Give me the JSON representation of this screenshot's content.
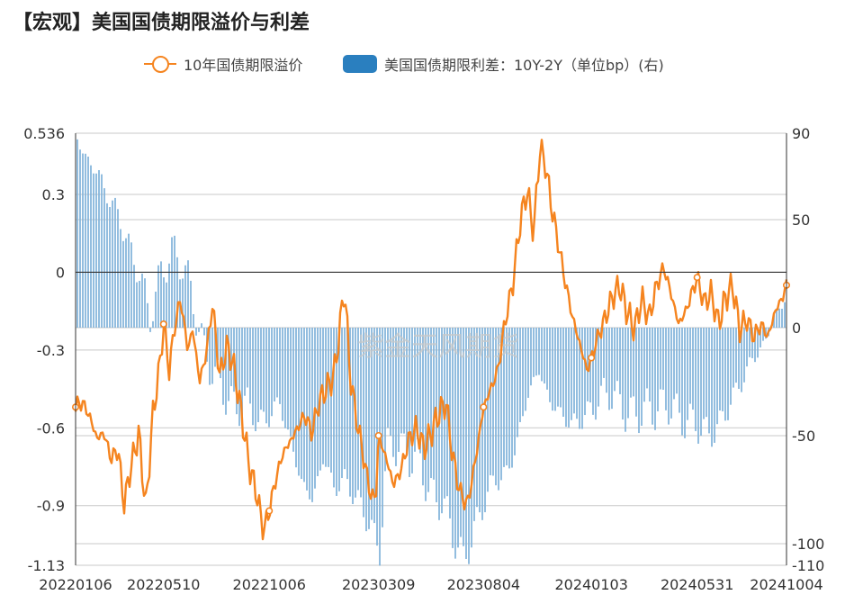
{
  "title": "【宏观】美国国债期限溢价与利差",
  "watermark": "紫金天风期货",
  "chart_data": {
    "type": "bar+line",
    "legend_position": "top-center",
    "series": [
      {
        "name": "10年国债期限溢价",
        "type": "line",
        "axis": "left",
        "color": "#f5841f",
        "points": [
          [
            "2022-01-06",
            -0.52
          ],
          [
            "2022-01-15",
            -0.5
          ],
          [
            "2022-01-25",
            -0.55
          ],
          [
            "2022-02-05",
            -0.64
          ],
          [
            "2022-02-15",
            -0.62
          ],
          [
            "2022-02-25",
            -0.72
          ],
          [
            "2022-03-07",
            -0.68
          ],
          [
            "2022-03-15",
            -0.9
          ],
          [
            "2022-03-25",
            -0.75
          ],
          [
            "2022-04-05",
            -0.62
          ],
          [
            "2022-04-15",
            -0.91
          ],
          [
            "2022-04-25",
            -0.55
          ],
          [
            "2022-05-05",
            -0.35
          ],
          [
            "2022-05-10",
            -0.2
          ],
          [
            "2022-05-18",
            -0.38
          ],
          [
            "2022-05-25",
            -0.22
          ],
          [
            "2022-06-03",
            -0.1
          ],
          [
            "2022-06-13",
            -0.3
          ],
          [
            "2022-06-20",
            -0.22
          ],
          [
            "2022-06-30",
            -0.42
          ],
          [
            "2022-07-10",
            -0.3
          ],
          [
            "2022-07-18",
            -0.12
          ],
          [
            "2022-07-28",
            -0.4
          ],
          [
            "2022-08-08",
            -0.28
          ],
          [
            "2022-08-18",
            -0.38
          ],
          [
            "2022-08-28",
            -0.55
          ],
          [
            "2022-09-08",
            -0.75
          ],
          [
            "2022-09-18",
            -0.85
          ],
          [
            "2022-09-28",
            -1.0
          ],
          [
            "2022-10-06",
            -0.92
          ],
          [
            "2022-10-15",
            -0.8
          ],
          [
            "2022-10-25",
            -0.7
          ],
          [
            "2022-11-05",
            -0.65
          ],
          [
            "2022-11-15",
            -0.6
          ],
          [
            "2022-11-25",
            -0.55
          ],
          [
            "2022-12-05",
            -0.62
          ],
          [
            "2022-12-15",
            -0.5
          ],
          [
            "2022-12-25",
            -0.45
          ],
          [
            "2023-01-05",
            -0.4
          ],
          [
            "2023-01-12",
            -0.25
          ],
          [
            "2023-01-20",
            -0.05
          ],
          [
            "2023-01-28",
            -0.4
          ],
          [
            "2023-02-05",
            -0.55
          ],
          [
            "2023-02-15",
            -0.7
          ],
          [
            "2023-02-25",
            -0.85
          ],
          [
            "2023-03-05",
            -0.88
          ],
          [
            "2023-03-09",
            -0.63
          ],
          [
            "2023-03-20",
            -0.72
          ],
          [
            "2023-03-30",
            -0.82
          ],
          [
            "2023-04-10",
            -0.76
          ],
          [
            "2023-04-20",
            -0.65
          ],
          [
            "2023-05-01",
            -0.6
          ],
          [
            "2023-05-12",
            -0.68
          ],
          [
            "2023-05-22",
            -0.62
          ],
          [
            "2023-06-01",
            -0.55
          ],
          [
            "2023-06-12",
            -0.5
          ],
          [
            "2023-06-22",
            -0.72
          ],
          [
            "2023-07-02",
            -0.85
          ],
          [
            "2023-07-12",
            -0.9
          ],
          [
            "2023-07-22",
            -0.75
          ],
          [
            "2023-08-04",
            -0.52
          ],
          [
            "2023-08-14",
            -0.45
          ],
          [
            "2023-08-24",
            -0.38
          ],
          [
            "2023-09-04",
            -0.18
          ],
          [
            "2023-09-14",
            -0.05
          ],
          [
            "2023-09-24",
            0.18
          ],
          [
            "2023-10-04",
            0.32
          ],
          [
            "2023-10-14",
            0.15
          ],
          [
            "2023-10-22",
            0.48
          ],
          [
            "2023-10-30",
            0.42
          ],
          [
            "2023-11-08",
            0.25
          ],
          [
            "2023-11-18",
            0.1
          ],
          [
            "2023-11-28",
            -0.05
          ],
          [
            "2023-12-08",
            -0.18
          ],
          [
            "2023-12-18",
            -0.28
          ],
          [
            "2023-12-28",
            -0.38
          ],
          [
            "2024-01-03",
            -0.33
          ],
          [
            "2024-01-12",
            -0.25
          ],
          [
            "2024-01-22",
            -0.18
          ],
          [
            "2024-02-01",
            -0.1
          ],
          [
            "2024-02-12",
            -0.05
          ],
          [
            "2024-02-22",
            -0.15
          ],
          [
            "2024-03-04",
            -0.22
          ],
          [
            "2024-03-14",
            -0.1
          ],
          [
            "2024-03-24",
            -0.18
          ],
          [
            "2024-04-04",
            -0.05
          ],
          [
            "2024-04-14",
            0.02
          ],
          [
            "2024-04-24",
            -0.08
          ],
          [
            "2024-05-05",
            -0.2
          ],
          [
            "2024-05-15",
            -0.15
          ],
          [
            "2024-05-31",
            -0.02
          ],
          [
            "2024-06-10",
            -0.12
          ],
          [
            "2024-06-20",
            -0.08
          ],
          [
            "2024-06-30",
            -0.2
          ],
          [
            "2024-07-10",
            -0.1
          ],
          [
            "2024-07-20",
            -0.05
          ],
          [
            "2024-07-30",
            -0.22
          ],
          [
            "2024-08-09",
            -0.18
          ],
          [
            "2024-08-19",
            -0.25
          ],
          [
            "2024-08-29",
            -0.2
          ],
          [
            "2024-09-08",
            -0.25
          ],
          [
            "2024-09-18",
            -0.15
          ],
          [
            "2024-09-28",
            -0.1
          ],
          [
            "2024-10-04",
            -0.05
          ]
        ]
      },
      {
        "name": "美国国债期限利差：10Y-2Y（单位bp）(右)",
        "type": "bar",
        "axis": "right",
        "color": "#7fb2d9",
        "points": [
          [
            "2022-01-06",
            88
          ],
          [
            "2022-01-20",
            78
          ],
          [
            "2022-02-05",
            72
          ],
          [
            "2022-02-20",
            60
          ],
          [
            "2022-03-07",
            52
          ],
          [
            "2022-03-20",
            38
          ],
          [
            "2022-04-05",
            25
          ],
          [
            "2022-04-20",
            5
          ],
          [
            "2022-05-05",
            25
          ],
          [
            "2022-05-20",
            35
          ],
          [
            "2022-06-05",
            30
          ],
          [
            "2022-06-20",
            12
          ],
          [
            "2022-07-05",
            -12
          ],
          [
            "2022-07-20",
            -22
          ],
          [
            "2022-08-05",
            -32
          ],
          [
            "2022-08-20",
            -38
          ],
          [
            "2022-09-05",
            -35
          ],
          [
            "2022-09-20",
            -45
          ],
          [
            "2022-10-06",
            -40
          ],
          [
            "2022-10-20",
            -35
          ],
          [
            "2022-11-05",
            -55
          ],
          [
            "2022-11-20",
            -72
          ],
          [
            "2022-12-05",
            -80
          ],
          [
            "2022-12-20",
            -60
          ],
          [
            "2023-01-05",
            -75
          ],
          [
            "2023-01-20",
            -70
          ],
          [
            "2023-02-05",
            -80
          ],
          [
            "2023-02-20",
            -88
          ],
          [
            "2023-03-09",
            -105
          ],
          [
            "2023-03-20",
            -55
          ],
          [
            "2023-04-05",
            -55
          ],
          [
            "2023-04-20",
            -60
          ],
          [
            "2023-05-05",
            -62
          ],
          [
            "2023-05-20",
            -78
          ],
          [
            "2023-06-05",
            -80
          ],
          [
            "2023-06-20",
            -95
          ],
          [
            "2023-07-05",
            -108
          ],
          [
            "2023-07-20",
            -95
          ],
          [
            "2023-08-04",
            -80
          ],
          [
            "2023-08-20",
            -70
          ],
          [
            "2023-09-05",
            -68
          ],
          [
            "2023-09-20",
            -52
          ],
          [
            "2023-10-05",
            -30
          ],
          [
            "2023-10-20",
            -20
          ],
          [
            "2023-11-05",
            -35
          ],
          [
            "2023-11-20",
            -40
          ],
          [
            "2023-12-05",
            -45
          ],
          [
            "2023-12-20",
            -42
          ],
          [
            "2024-01-03",
            -38
          ],
          [
            "2024-01-20",
            -30
          ],
          [
            "2024-02-05",
            -32
          ],
          [
            "2024-02-20",
            -40
          ],
          [
            "2024-03-05",
            -40
          ],
          [
            "2024-03-20",
            -38
          ],
          [
            "2024-04-05",
            -38
          ],
          [
            "2024-04-20",
            -35
          ],
          [
            "2024-05-05",
            -42
          ],
          [
            "2024-05-31",
            -45
          ],
          [
            "2024-06-15",
            -50
          ],
          [
            "2024-07-01",
            -45
          ],
          [
            "2024-07-15",
            -35
          ],
          [
            "2024-08-01",
            -25
          ],
          [
            "2024-08-15",
            -15
          ],
          [
            "2024-09-01",
            -8
          ],
          [
            "2024-09-15",
            5
          ],
          [
            "2024-10-04",
            15
          ]
        ]
      }
    ],
    "x_axis": {
      "type": "date",
      "range": [
        "2022-01-06",
        "2024-10-04"
      ],
      "tick_labels": [
        "20220106",
        "20220510",
        "20221006",
        "20230309",
        "20230804",
        "20240103",
        "20240531",
        "20241004"
      ],
      "tick_dates": [
        "2022-01-06",
        "2022-05-10",
        "2022-10-06",
        "2023-03-09",
        "2023-08-04",
        "2024-01-03",
        "2024-05-31",
        "2024-10-04"
      ]
    },
    "y_axis_left": {
      "range": [
        -1.13,
        0.536
      ],
      "ticks": [
        0.536,
        0.3,
        0,
        -0.3,
        -0.6,
        -0.9,
        -1.13
      ],
      "tick_labels": [
        "0.536",
        "0.3",
        "0",
        "-0.3",
        "-0.6",
        "-0.9",
        "-1.13"
      ]
    },
    "y_axis_right": {
      "range": [
        -110,
        90
      ],
      "ticks": [
        90,
        50,
        0,
        -50,
        -100,
        -110
      ],
      "tick_labels": [
        "90",
        "50",
        "0",
        "-50",
        "-100",
        "-110"
      ]
    },
    "grid": true
  }
}
